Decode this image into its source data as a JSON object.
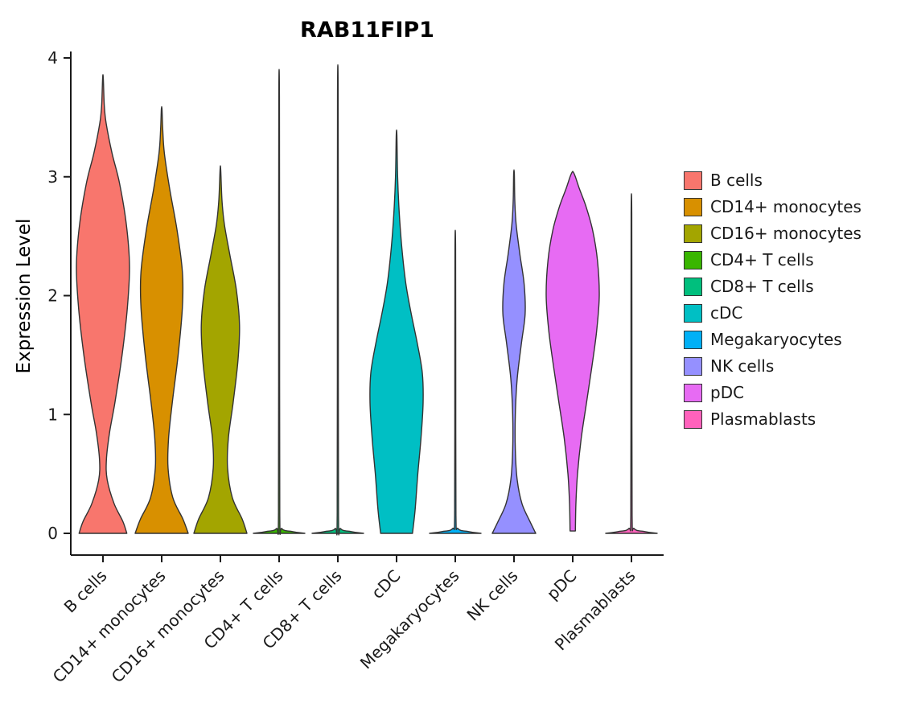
{
  "chart_data": {
    "type": "violin",
    "title": "RAB11FIP1",
    "xlabel": "",
    "ylabel": "Expression Level",
    "ylim": [
      0,
      4
    ],
    "yticks": [
      0,
      1,
      2,
      3,
      4
    ],
    "legend_position": "right",
    "grid": false,
    "profile_format": "[expression_level, relative_half_width 0..1]",
    "categories": [
      "B cells",
      "CD14+ monocytes",
      "CD16+ monocytes",
      "CD4+ T cells",
      "CD8+ T cells",
      "cDC",
      "Megakaryocytes",
      "NK cells",
      "pDC",
      "Plasmablasts"
    ],
    "colors": [
      "#F8766D",
      "#D89000",
      "#A3A500",
      "#39B600",
      "#00BF7D",
      "#00BFC4",
      "#00B0F6",
      "#9590FF",
      "#E76BF3",
      "#FF62BC"
    ],
    "series": [
      {
        "name": "B cells",
        "color": "#F8766D",
        "max_expression": 3.83,
        "profile": [
          [
            0,
            0.9
          ],
          [
            0.1,
            0.75
          ],
          [
            0.25,
            0.42
          ],
          [
            0.45,
            0.16
          ],
          [
            0.62,
            0.13
          ],
          [
            0.85,
            0.25
          ],
          [
            1.1,
            0.45
          ],
          [
            1.5,
            0.72
          ],
          [
            1.9,
            0.92
          ],
          [
            2.25,
            1.0
          ],
          [
            2.6,
            0.88
          ],
          [
            2.95,
            0.62
          ],
          [
            3.2,
            0.34
          ],
          [
            3.45,
            0.12
          ],
          [
            3.6,
            0.05
          ],
          [
            3.83,
            0.012
          ]
        ]
      },
      {
        "name": "CD14+ monocytes",
        "color": "#D89000",
        "max_expression": 3.57,
        "profile": [
          [
            0,
            1.0
          ],
          [
            0.12,
            0.8
          ],
          [
            0.3,
            0.42
          ],
          [
            0.55,
            0.24
          ],
          [
            0.8,
            0.26
          ],
          [
            1.1,
            0.4
          ],
          [
            1.5,
            0.62
          ],
          [
            1.9,
            0.78
          ],
          [
            2.2,
            0.78
          ],
          [
            2.55,
            0.58
          ],
          [
            2.9,
            0.3
          ],
          [
            3.2,
            0.1
          ],
          [
            3.4,
            0.04
          ],
          [
            3.57,
            0.012
          ]
        ]
      },
      {
        "name": "CD16+ monocytes",
        "color": "#A3A500",
        "max_expression": 3.06,
        "profile": [
          [
            0,
            1.0
          ],
          [
            0.12,
            0.82
          ],
          [
            0.3,
            0.45
          ],
          [
            0.55,
            0.27
          ],
          [
            0.8,
            0.3
          ],
          [
            1.1,
            0.48
          ],
          [
            1.45,
            0.66
          ],
          [
            1.75,
            0.72
          ],
          [
            2.05,
            0.6
          ],
          [
            2.35,
            0.35
          ],
          [
            2.6,
            0.15
          ],
          [
            2.8,
            0.06
          ],
          [
            3.06,
            0.012
          ]
        ]
      },
      {
        "name": "CD4+ T cells",
        "color": "#39B600",
        "max_expression": 3.67,
        "profile": [
          [
            0,
            0.97
          ],
          [
            0.015,
            0.5
          ],
          [
            0.04,
            0.1
          ],
          [
            0.15,
            0.025
          ],
          [
            1.8,
            0.018
          ],
          [
            3.67,
            0.012
          ]
        ]
      },
      {
        "name": "CD8+ T cells",
        "color": "#00BF7D",
        "max_expression": 3.71,
        "profile": [
          [
            0,
            0.97
          ],
          [
            0.015,
            0.5
          ],
          [
            0.04,
            0.1
          ],
          [
            0.15,
            0.025
          ],
          [
            1.85,
            0.018
          ],
          [
            3.71,
            0.012
          ]
        ]
      },
      {
        "name": "cDC",
        "color": "#00BFC4",
        "max_expression": 3.35,
        "profile": [
          [
            0,
            0.6
          ],
          [
            0.2,
            0.7
          ],
          [
            0.5,
            0.8
          ],
          [
            0.8,
            0.92
          ],
          [
            1.1,
            1.0
          ],
          [
            1.35,
            0.97
          ],
          [
            1.6,
            0.78
          ],
          [
            1.85,
            0.55
          ],
          [
            2.1,
            0.35
          ],
          [
            2.4,
            0.2
          ],
          [
            2.7,
            0.1
          ],
          [
            3.0,
            0.04
          ],
          [
            3.35,
            0.012
          ]
        ]
      },
      {
        "name": "Megakaryocytes",
        "color": "#00B0F6",
        "max_expression": 2.4,
        "profile": [
          [
            0,
            0.97
          ],
          [
            0.015,
            0.5
          ],
          [
            0.04,
            0.1
          ],
          [
            0.15,
            0.025
          ],
          [
            1.2,
            0.018
          ],
          [
            2.4,
            0.012
          ]
        ]
      },
      {
        "name": "NK cells",
        "color": "#9590FF",
        "max_expression": 3.03,
        "profile": [
          [
            0,
            0.82
          ],
          [
            0.1,
            0.6
          ],
          [
            0.25,
            0.3
          ],
          [
            0.45,
            0.12
          ],
          [
            0.7,
            0.05
          ],
          [
            1.0,
            0.05
          ],
          [
            1.3,
            0.12
          ],
          [
            1.6,
            0.28
          ],
          [
            1.85,
            0.42
          ],
          [
            2.1,
            0.38
          ],
          [
            2.35,
            0.22
          ],
          [
            2.6,
            0.08
          ],
          [
            2.8,
            0.03
          ],
          [
            3.03,
            0.012
          ]
        ]
      },
      {
        "name": "pDC",
        "color": "#E76BF3",
        "max_expression": 3.04,
        "profile": [
          [
            0.02,
            0.1
          ],
          [
            0.25,
            0.12
          ],
          [
            0.5,
            0.18
          ],
          [
            0.8,
            0.32
          ],
          [
            1.1,
            0.52
          ],
          [
            1.4,
            0.72
          ],
          [
            1.7,
            0.9
          ],
          [
            2.0,
            1.0
          ],
          [
            2.3,
            0.93
          ],
          [
            2.55,
            0.75
          ],
          [
            2.75,
            0.5
          ],
          [
            2.9,
            0.25
          ],
          [
            3.0,
            0.1
          ],
          [
            3.04,
            0.02
          ]
        ]
      },
      {
        "name": "Plasmablasts",
        "color": "#FF62BC",
        "max_expression": 2.69,
        "profile": [
          [
            0,
            0.97
          ],
          [
            0.015,
            0.5
          ],
          [
            0.04,
            0.1
          ],
          [
            0.15,
            0.025
          ],
          [
            1.35,
            0.018
          ],
          [
            2.69,
            0.012
          ]
        ]
      }
    ]
  }
}
